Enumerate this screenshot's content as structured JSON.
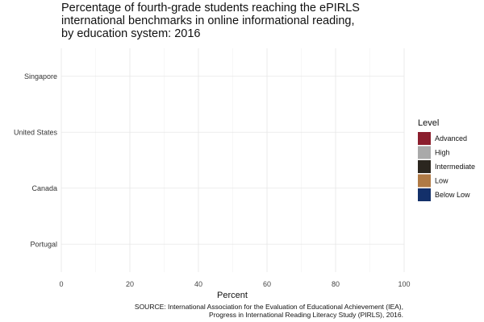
{
  "chart_data": {
    "type": "bar",
    "orientation": "horizontal",
    "stacked": true,
    "title_lines": [
      "Percentage of fourth-grade students reaching the ePIRLS",
      "international benchmarks in online informational reading,",
      "by education system: 2016"
    ],
    "xlabel": "Percent",
    "ylabel": "",
    "xlim": [
      0,
      100
    ],
    "x_ticks": [
      0,
      20,
      40,
      60,
      80,
      100
    ],
    "grid": true,
    "categories": [
      "Singapore",
      "United States",
      "Canada",
      "Portugal"
    ],
    "series": [
      {
        "name": "Advanced",
        "color": "#8b1e2d",
        "values": [
          0,
          0,
          0,
          0
        ]
      },
      {
        "name": "High",
        "color": "#a9a9a9",
        "values": [
          0,
          0,
          0,
          0
        ]
      },
      {
        "name": "Intermediate",
        "color": "#2b261f",
        "values": [
          0,
          0,
          0,
          0
        ]
      },
      {
        "name": "Low",
        "color": "#b07a45",
        "values": [
          0,
          0,
          0,
          0
        ]
      },
      {
        "name": "Below Low",
        "color": "#13306a",
        "values": [
          0,
          0,
          0,
          0
        ]
      }
    ],
    "legend": {
      "title": "Level",
      "position": "right"
    },
    "source_lines": [
      "SOURCE: International Association for the Evaluation of Educational Achievement (IEA),",
      "Progress in International Reading Literacy Study (PIRLS), 2016."
    ]
  }
}
